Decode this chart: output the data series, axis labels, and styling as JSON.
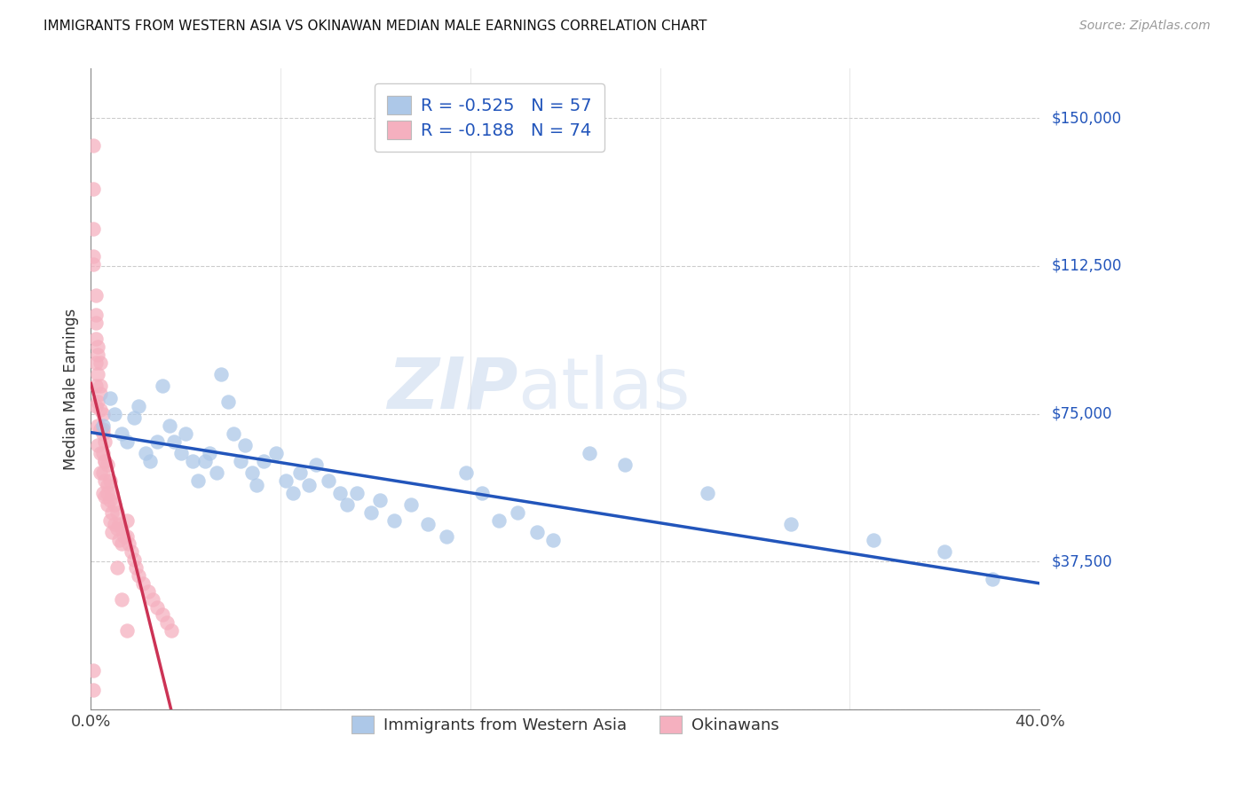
{
  "title": "IMMIGRANTS FROM WESTERN ASIA VS OKINAWAN MEDIAN MALE EARNINGS CORRELATION CHART",
  "source": "Source: ZipAtlas.com",
  "ylabel": "Median Male Earnings",
  "xlim": [
    0.0,
    0.4
  ],
  "ylim": [
    0,
    162500
  ],
  "yticks": [
    0,
    37500,
    75000,
    112500,
    150000
  ],
  "ytick_labels": [
    "",
    "$37,500",
    "$75,000",
    "$112,500",
    "$150,000"
  ],
  "xtick_positions": [
    0.0,
    0.08,
    0.16,
    0.24,
    0.32,
    0.4
  ],
  "xtick_labels": [
    "0.0%",
    "",
    "",
    "",
    "",
    "40.0%"
  ],
  "blue_R": "-0.525",
  "blue_N": "57",
  "pink_R": "-0.188",
  "pink_N": "74",
  "blue_color": "#adc8e8",
  "pink_color": "#f5b0bf",
  "blue_line_color": "#2255bb",
  "pink_line_color": "#cc3355",
  "pink_dash_color": "#e8a0b0",
  "watermark_zip": "ZIP",
  "watermark_atlas": "atlas",
  "legend_label_blue": "Immigrants from Western Asia",
  "legend_label_pink": "Okinawans",
  "blue_scatter_x": [
    0.005,
    0.008,
    0.01,
    0.013,
    0.015,
    0.018,
    0.02,
    0.023,
    0.025,
    0.028,
    0.03,
    0.033,
    0.035,
    0.038,
    0.04,
    0.043,
    0.045,
    0.048,
    0.05,
    0.053,
    0.055,
    0.058,
    0.06,
    0.063,
    0.065,
    0.068,
    0.07,
    0.073,
    0.078,
    0.082,
    0.085,
    0.088,
    0.092,
    0.095,
    0.1,
    0.105,
    0.108,
    0.112,
    0.118,
    0.122,
    0.128,
    0.135,
    0.142,
    0.15,
    0.158,
    0.165,
    0.172,
    0.18,
    0.188,
    0.195,
    0.21,
    0.225,
    0.26,
    0.295,
    0.33,
    0.36,
    0.38
  ],
  "blue_scatter_y": [
    72000,
    79000,
    75000,
    70000,
    68000,
    74000,
    77000,
    65000,
    63000,
    68000,
    82000,
    72000,
    68000,
    65000,
    70000,
    63000,
    58000,
    63000,
    65000,
    60000,
    85000,
    78000,
    70000,
    63000,
    67000,
    60000,
    57000,
    63000,
    65000,
    58000,
    55000,
    60000,
    57000,
    62000,
    58000,
    55000,
    52000,
    55000,
    50000,
    53000,
    48000,
    52000,
    47000,
    44000,
    60000,
    55000,
    48000,
    50000,
    45000,
    43000,
    65000,
    62000,
    55000,
    47000,
    43000,
    40000,
    33000
  ],
  "pink_scatter_x": [
    0.001,
    0.001,
    0.001,
    0.001,
    0.002,
    0.002,
    0.002,
    0.002,
    0.002,
    0.003,
    0.003,
    0.003,
    0.003,
    0.003,
    0.004,
    0.004,
    0.004,
    0.004,
    0.004,
    0.004,
    0.005,
    0.005,
    0.005,
    0.005,
    0.005,
    0.006,
    0.006,
    0.006,
    0.006,
    0.007,
    0.007,
    0.007,
    0.008,
    0.008,
    0.008,
    0.009,
    0.009,
    0.01,
    0.01,
    0.011,
    0.011,
    0.012,
    0.012,
    0.013,
    0.013,
    0.014,
    0.015,
    0.015,
    0.016,
    0.017,
    0.018,
    0.019,
    0.02,
    0.022,
    0.024,
    0.026,
    0.028,
    0.03,
    0.032,
    0.034,
    0.001,
    0.002,
    0.002,
    0.003,
    0.004,
    0.005,
    0.006,
    0.007,
    0.009,
    0.011,
    0.013,
    0.015,
    0.001,
    0.001
  ],
  "pink_scatter_y": [
    143000,
    132000,
    122000,
    113000,
    100000,
    94000,
    88000,
    82000,
    77000,
    92000,
    85000,
    78000,
    72000,
    67000,
    88000,
    82000,
    76000,
    71000,
    65000,
    60000,
    75000,
    70000,
    65000,
    60000,
    55000,
    68000,
    63000,
    58000,
    54000,
    62000,
    57000,
    52000,
    58000,
    53000,
    48000,
    55000,
    50000,
    52000,
    47000,
    50000,
    46000,
    47000,
    43000,
    46000,
    42000,
    44000,
    48000,
    44000,
    42000,
    40000,
    38000,
    36000,
    34000,
    32000,
    30000,
    28000,
    26000,
    24000,
    22000,
    20000,
    115000,
    105000,
    98000,
    90000,
    80000,
    71000,
    63000,
    55000,
    45000,
    36000,
    28000,
    20000,
    10000,
    5000
  ]
}
